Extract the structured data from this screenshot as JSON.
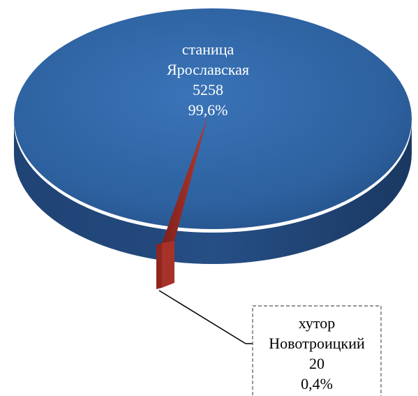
{
  "chart_data": {
    "type": "pie",
    "title": "",
    "slices": [
      {
        "name": "станица Ярославская",
        "label_lines": [
          "станица",
          "Ярославская"
        ],
        "value": 5258,
        "percent_label": "99,6%",
        "color": "#2a5d9e"
      },
      {
        "name": "хутор Новотроицкий",
        "label_lines": [
          "хутор",
          "Новотроицкий"
        ],
        "value": 20,
        "percent_label": "0,4%",
        "color": "#a3322a"
      }
    ],
    "style": "3d",
    "legend": "none"
  }
}
